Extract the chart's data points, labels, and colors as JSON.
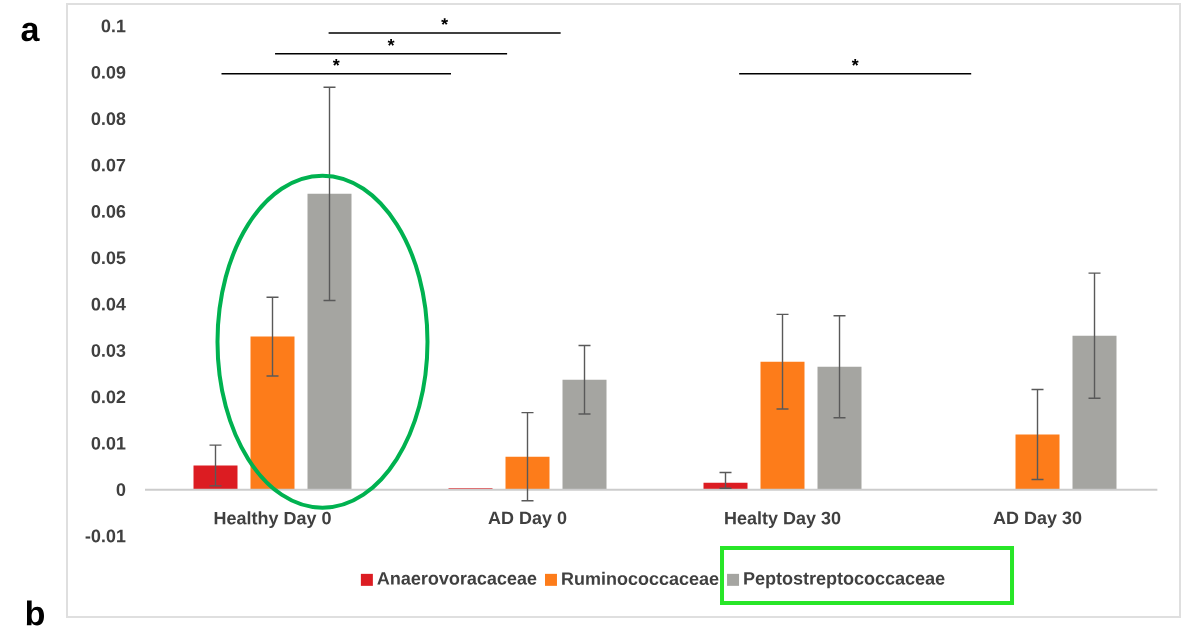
{
  "chart_data": {
    "type": "bar",
    "categories": [
      "Healthy Day 0",
      "AD Day 0",
      "Healty Day 30",
      "AD Day 30"
    ],
    "series": [
      {
        "name": "Anaerovoracaceae",
        "color": "#dc1c22",
        "values": [
          0.0052,
          0.0003,
          0.0015,
          0
        ],
        "errors": [
          0.0044,
          null,
          [
            0.0003,
            0.0037
          ],
          null
        ]
      },
      {
        "name": "Ruminococcaceae",
        "color": "#fd7c1a",
        "values": [
          0.033,
          0.0071,
          0.0276,
          0.0119
        ],
        "errors": [
          0.0085,
          0.0095,
          0.0102,
          0.0097
        ]
      },
      {
        "name": "Peptostreptococcaceae",
        "color": "#a5a5a1",
        "values": [
          0.0638,
          0.0237,
          0.0265,
          0.0332
        ],
        "errors": [
          0.023,
          0.0074,
          0.011,
          0.0135
        ]
      }
    ],
    "ylim": [
      -0.01,
      0.1
    ],
    "yticks": [
      -0.01,
      0,
      0.01,
      0.02,
      0.03,
      0.04,
      0.05,
      0.06,
      0.07,
      0.08,
      0.09,
      0.1
    ],
    "legend": "bottom",
    "grid": false,
    "annotations": [
      "a",
      "b",
      "*",
      "*",
      "*",
      "*"
    ]
  }
}
